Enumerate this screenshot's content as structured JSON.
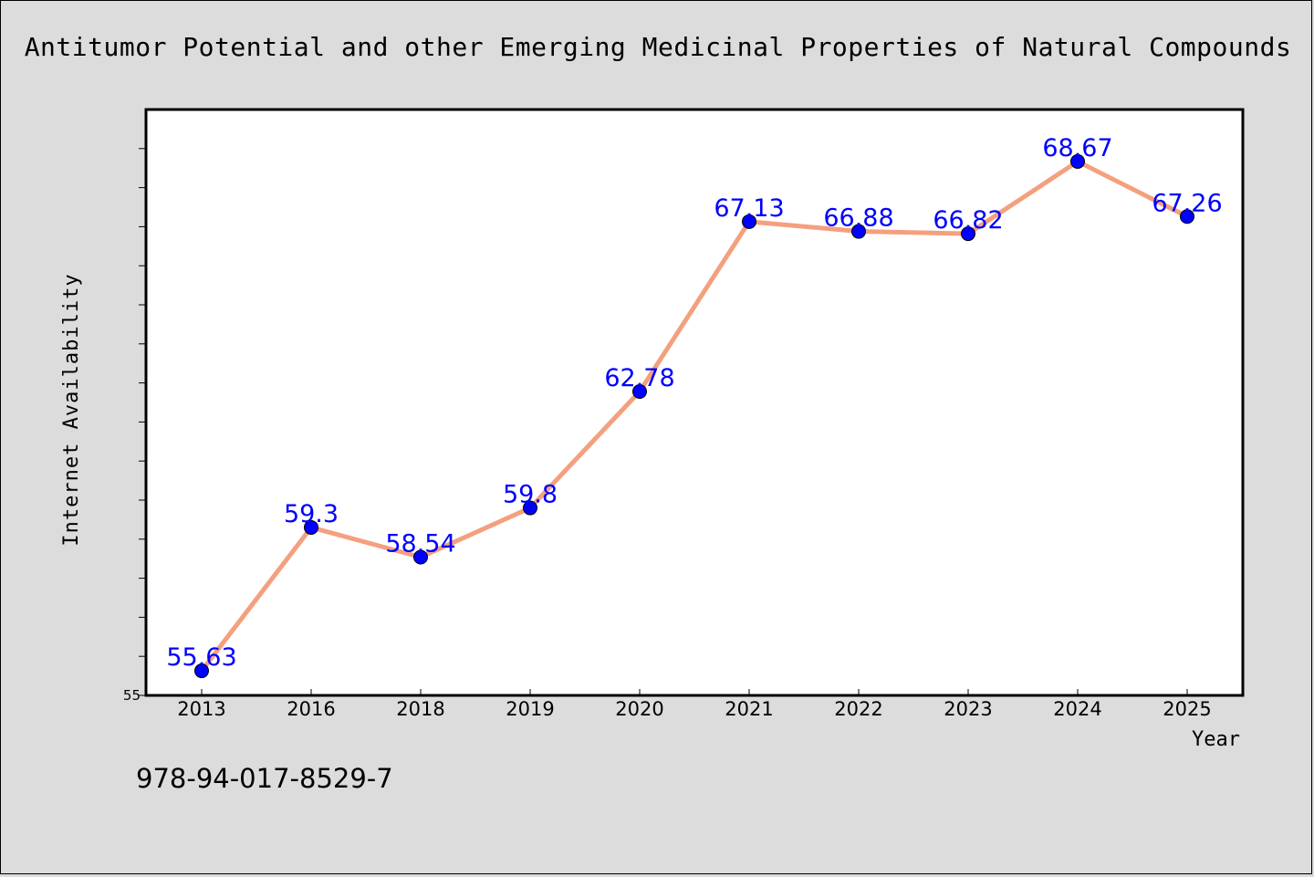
{
  "isbn": "978-94-017-8529-7",
  "chart_data": {
    "type": "line",
    "title": "Antitumor Potential and other Emerging Medicinal Properties of Natural Compounds",
    "xlabel": "Year",
    "ylabel": "Internet Availability",
    "categories": [
      "2013",
      "2016",
      "2018",
      "2019",
      "2020",
      "2021",
      "2022",
      "2023",
      "2024",
      "2025"
    ],
    "values": [
      55.63,
      59.3,
      58.54,
      59.8,
      62.78,
      67.13,
      66.88,
      66.82,
      68.67,
      67.26
    ],
    "value_labels": [
      "55.63",
      "59.3",
      "58.54",
      "59.8",
      "62.78",
      "67.13",
      "66.88",
      "66.82",
      "68.67",
      "67.26"
    ],
    "y_tick_labels": [
      "55"
    ],
    "ylim": [
      55,
      70
    ],
    "line_color": "#f4a07f",
    "marker_color": "#0000ff",
    "label_color": "#0000ff",
    "grid": false
  }
}
